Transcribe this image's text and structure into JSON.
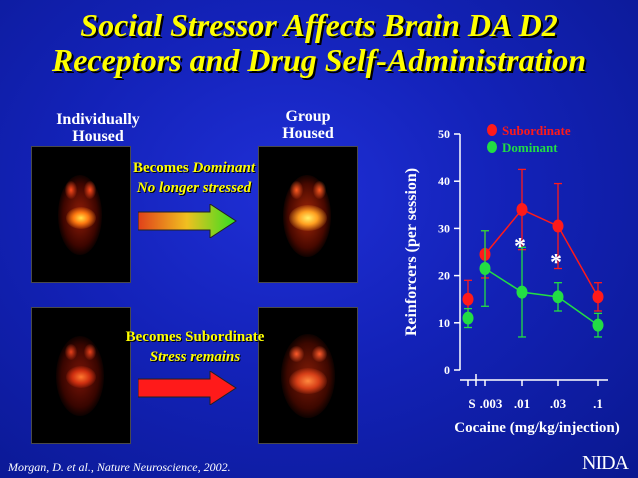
{
  "title": {
    "line1": "Social Stressor Affects Brain DA D2",
    "line2": "Receptors and Drug Self-Administration"
  },
  "columns": {
    "left_line1": "Individually",
    "left_line2": "Housed",
    "right_line1": "Group",
    "right_line2": "Housed"
  },
  "captions": {
    "dominant_line1": "Becomes ",
    "dominant_word": "Dominant",
    "dominant_line2": "No longer stressed",
    "subordinate_line1": "Becomes Subordinate",
    "subordinate_line2": "Stress remains"
  },
  "colors": {
    "title": "#ffff00",
    "subordinate": "#ff1a1a",
    "dominant": "#22dd44",
    "background": "#1322b8"
  },
  "citation": "Morgan, D. et al., Nature Neuroscience, 2002.",
  "logo": "NIDA",
  "chart_data": {
    "type": "line",
    "x": [
      "S",
      ".003",
      ".01",
      ".03",
      ".1"
    ],
    "xlabel": "Cocaine (mg/kg/injection)",
    "ylabel": "Reinforcers (per session)",
    "ylim": [
      0,
      50
    ],
    "yticks": [
      0,
      10,
      20,
      30,
      40,
      50
    ],
    "legend_position": "top-right",
    "series": [
      {
        "name": "Subordinate",
        "values": [
          15,
          24.5,
          34,
          30.5,
          15.5
        ],
        "errors": [
          4,
          5,
          8.5,
          9,
          3
        ]
      },
      {
        "name": "Dominant",
        "values": [
          11,
          21.5,
          16.5,
          15.5,
          9.5
        ],
        "errors": [
          2,
          8,
          9.5,
          3,
          2.5
        ]
      }
    ],
    "annotations": [
      {
        "label": "*",
        "x": ".01"
      },
      {
        "label": "*",
        "x": ".03"
      }
    ]
  }
}
